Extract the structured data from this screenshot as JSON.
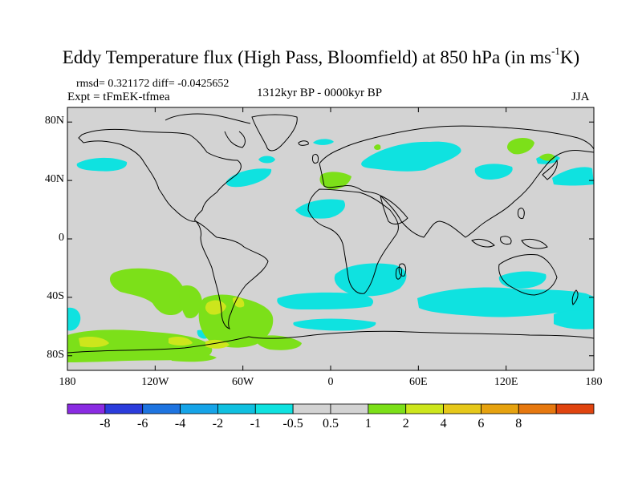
{
  "title_main": "Eddy Temperature flux (High Pass, Bloomfield) at 850 hPa (in ms",
  "title_sup": "-1",
  "title_end": "K)",
  "stats_line": "rmsd= 0.321172 diff= -0.0425652",
  "experiment": "Expt = tFmEK-tfmea",
  "period": "1312kyr BP - 0000kyr BP",
  "season": "JJA",
  "map": {
    "land_fill": "#d3d3d3",
    "coastline_color": "#000000",
    "lat_ticks": [
      "80N",
      "40N",
      "0",
      "40S",
      "80S"
    ],
    "lat_values": [
      80,
      40,
      0,
      -40,
      -80
    ],
    "lon_ticks": [
      "180",
      "120W",
      "60W",
      "0",
      "60E",
      "120E",
      "180"
    ],
    "lon_values": [
      -180,
      -120,
      -60,
      0,
      60,
      120,
      180
    ]
  },
  "colorbar": {
    "colors": [
      "#8a2be2",
      "#2b3cdc",
      "#1e74e0",
      "#16a4e8",
      "#10c0e0",
      "#0fe2e0",
      "#d3d3d3",
      "#d3d3d3",
      "#7ce019",
      "#cde61c",
      "#e6c81a",
      "#e6a20f",
      "#e6780f",
      "#e0440f"
    ],
    "labels": [
      "-8",
      "-6",
      "-4",
      "-2",
      "-1",
      "-0.5",
      "0.5",
      "1",
      "2",
      "4",
      "6",
      "8"
    ]
  }
}
